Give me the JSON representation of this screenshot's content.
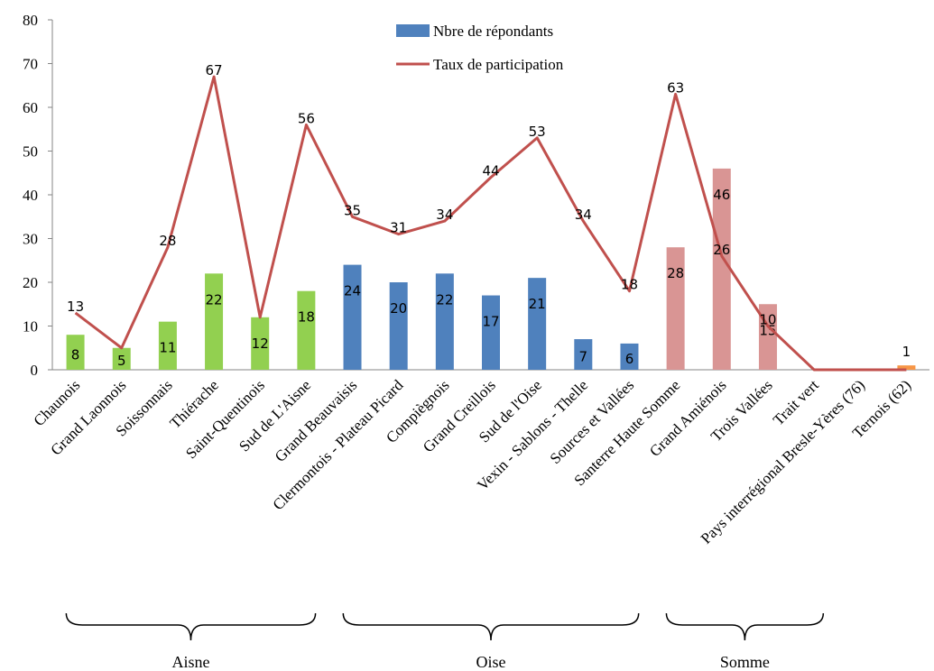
{
  "chart_data": {
    "type": "bar",
    "categories": [
      "Chaunois",
      "Grand Laonnois",
      "Soissonnais",
      "Thiérache",
      "Saint-Quentinois",
      "Sud de L'Aisne",
      "Grand Beauvaisis",
      "Clermontois - Plateau Picard",
      "Compiègnois",
      "Grand Creillois",
      "Sud de l'Oise",
      "Vexin - Sablons - Thelle",
      "Sources et Vallées",
      "Santerre Haute Somme",
      "Grand Amiénois",
      "Trois Vallées",
      "Trait vert",
      "Pays interrégional Bresle-Yères (76)",
      "Ternois (62)"
    ],
    "series": [
      {
        "name": "Nbre de répondants",
        "kind": "bar",
        "color": "#4f81bd",
        "values": [
          8,
          5,
          11,
          22,
          12,
          18,
          24,
          20,
          22,
          17,
          21,
          7,
          6,
          28,
          46,
          15,
          0,
          0,
          1
        ],
        "bar_colors": [
          "#92d050",
          "#92d050",
          "#92d050",
          "#92d050",
          "#92d050",
          "#92d050",
          "#4f81bd",
          "#4f81bd",
          "#4f81bd",
          "#4f81bd",
          "#4f81bd",
          "#4f81bd",
          "#4f81bd",
          "#d99594",
          "#d99594",
          "#d99594",
          "#d99594",
          "#d99594",
          "#f79646"
        ],
        "labels": [
          "8",
          "5",
          "11",
          "22",
          "12",
          "18",
          "24",
          "20",
          "22",
          "17",
          "21",
          "7",
          "6",
          "28",
          "46",
          "15",
          "",
          "",
          "1"
        ]
      },
      {
        "name": "Taux de participation",
        "kind": "line",
        "color": "#c0504d",
        "values": [
          13,
          5,
          28,
          67,
          12,
          56,
          35,
          31,
          34,
          44,
          53,
          34,
          18,
          63,
          26,
          10,
          0,
          0,
          0
        ],
        "labels": [
          "13",
          "",
          "28",
          "67",
          "",
          "56",
          "35",
          "31",
          "34",
          "44",
          "53",
          "34",
          "18",
          "63",
          "26",
          "10",
          "",
          "",
          ""
        ]
      }
    ],
    "ylim": [
      0,
      80
    ],
    "yticks": [
      "0",
      "10",
      "20",
      "30",
      "40",
      "50",
      "60",
      "70",
      "80"
    ],
    "legend_position": "top-center",
    "groups": [
      {
        "label": "Aisne",
        "from": 0,
        "to": 5
      },
      {
        "label": "Oise",
        "from": 6,
        "to": 12
      },
      {
        "label": "Somme",
        "from": 13,
        "to": 16
      }
    ]
  }
}
